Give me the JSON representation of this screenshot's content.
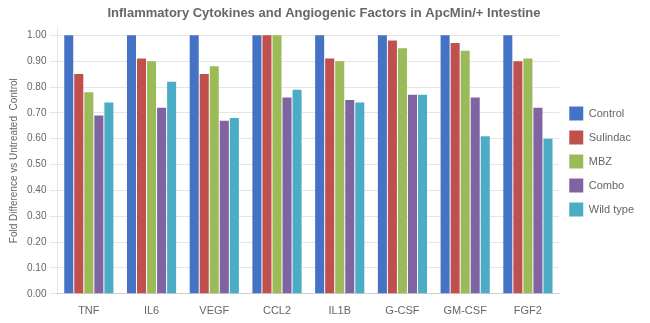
{
  "chart_data": {
    "type": "bar",
    "title": "Inflammatory Cytokines and Angiogenic Factors in ApcMin/+ Intestine",
    "ylabel": "Fold Difference vs Untreated  Control",
    "categories": [
      "TNF",
      "IL6",
      "VEGF",
      "CCL2",
      "IL1B",
      "G-CSF",
      "GM-CSF",
      "FGF2"
    ],
    "series": [
      {
        "name": "Control",
        "color": "#4472C4",
        "values": [
          1.0,
          1.0,
          1.0,
          1.0,
          1.0,
          1.0,
          1.0,
          1.0
        ]
      },
      {
        "name": "Sulindac",
        "color": "#C0504D",
        "values": [
          0.85,
          0.91,
          0.85,
          1.0,
          0.91,
          0.98,
          0.97,
          0.9
        ]
      },
      {
        "name": "MBZ",
        "color": "#9BBB59",
        "values": [
          0.78,
          0.9,
          0.88,
          1.0,
          0.9,
          0.95,
          0.94,
          0.91
        ]
      },
      {
        "name": "Combo",
        "color": "#8064A2",
        "values": [
          0.69,
          0.72,
          0.67,
          0.76,
          0.75,
          0.77,
          0.76,
          0.72
        ]
      },
      {
        "name": "Wild type",
        "color": "#4BACC6",
        "values": [
          0.74,
          0.82,
          0.68,
          0.79,
          0.74,
          0.77,
          0.61,
          0.6
        ]
      }
    ],
    "ylim": [
      0.0,
      1.03
    ],
    "yticks": [
      {
        "value": 0.0,
        "label": "0.00"
      },
      {
        "value": 0.1,
        "label": "0.10"
      },
      {
        "value": 0.2,
        "label": "0.20"
      },
      {
        "value": 0.3,
        "label": "0.30"
      },
      {
        "value": 0.4,
        "label": "0.40"
      },
      {
        "value": 0.5,
        "label": "0.50"
      },
      {
        "value": 0.6,
        "label": "0.60"
      },
      {
        "value": 0.7,
        "label": "0.70"
      },
      {
        "value": 0.8,
        "label": "0.80"
      },
      {
        "value": 0.9,
        "label": "0.90"
      },
      {
        "value": 1.0,
        "label": "1.00"
      }
    ],
    "grid": true,
    "legend": "right"
  }
}
